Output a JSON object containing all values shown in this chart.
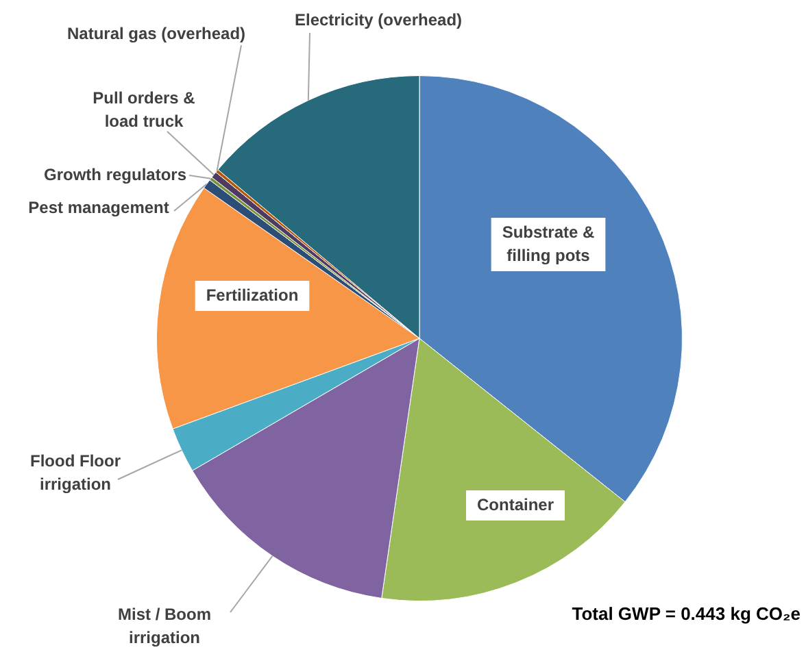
{
  "chart_data": {
    "type": "pie",
    "categories": [
      "Substrate & filling pots",
      "Container",
      "Mist / Boom irrigation",
      "Flood Floor irrigation",
      "Fertilization",
      "Pest management",
      "Growth regulators",
      "Pull orders & load truck",
      "Natural gas (overhead)",
      "Electricity (overhead)"
    ],
    "values": [
      35.7,
      16.6,
      14.3,
      2.8,
      15.3,
      0.6,
      0.2,
      0.4,
      0.2,
      13.9
    ],
    "colors": [
      "#4f81bd",
      "#9bbb59",
      "#8064a2",
      "#4bacc6",
      "#f79646",
      "#2c4d75",
      "#77933c",
      "#4d3b62",
      "#b65708",
      "#276a7c"
    ],
    "legend": false,
    "annotations": [
      "Total GWP = 0.443 kg CO₂e"
    ]
  }
}
